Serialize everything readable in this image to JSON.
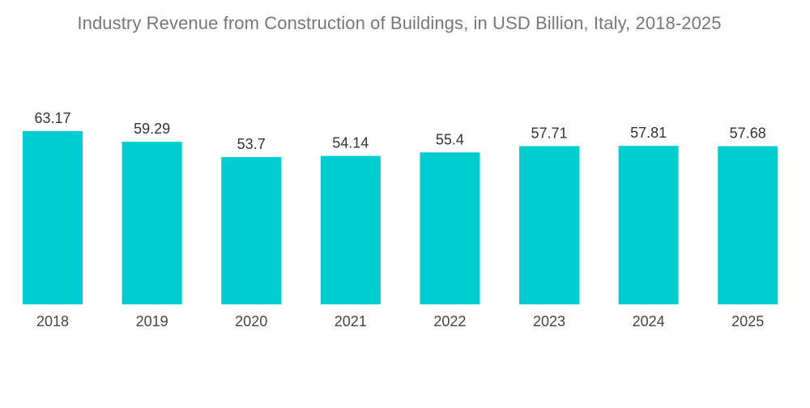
{
  "chart_data": {
    "type": "bar",
    "title": "Industry Revenue from Construction of Buildings, in USD Billion, Italy, 2018-2025",
    "xlabel": "",
    "ylabel": "",
    "categories": [
      "2018",
      "2019",
      "2020",
      "2021",
      "2022",
      "2023",
      "2024",
      "2025"
    ],
    "values": [
      63.17,
      59.29,
      53.7,
      54.14,
      55.4,
      57.71,
      57.81,
      57.68
    ],
    "value_labels": [
      "63.17",
      "59.29",
      "53.7",
      "54.14",
      "55.4",
      "57.71",
      "57.81",
      "57.68"
    ],
    "ylim": [
      0,
      63.17
    ],
    "grid": false,
    "legend": "none",
    "bar_color": "#00CDD0"
  }
}
